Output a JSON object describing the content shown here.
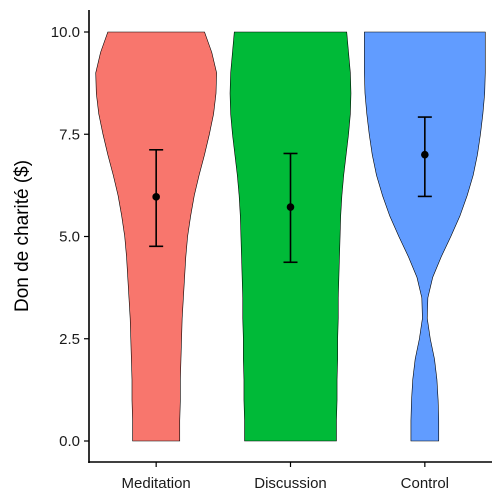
{
  "chart_data": {
    "type": "violin",
    "title": "",
    "xlabel": "",
    "ylabel": "Don de charité ($)",
    "ylim": [
      0,
      10
    ],
    "yticks": [
      0,
      2.5,
      5,
      7.5,
      10
    ],
    "ytick_labels": [
      "0.0",
      "2.5",
      "5.0",
      "7.5",
      "10.0"
    ],
    "grid": false,
    "legend": "none",
    "categories": [
      "Meditation",
      "Discussion",
      "Control"
    ],
    "series": [
      {
        "category": "Meditation",
        "color": "#F8766D",
        "mean": 5.97,
        "ci_low": 4.76,
        "ci_high": 7.12,
        "density_profile": [
          [
            0,
            0.39
          ],
          [
            0.5,
            0.39
          ],
          [
            1.0,
            0.4
          ],
          [
            1.5,
            0.4
          ],
          [
            2.0,
            0.41
          ],
          [
            2.5,
            0.42
          ],
          [
            3.0,
            0.43
          ],
          [
            3.5,
            0.45
          ],
          [
            4.0,
            0.47
          ],
          [
            4.5,
            0.49
          ],
          [
            5.0,
            0.52
          ],
          [
            5.5,
            0.57
          ],
          [
            6.0,
            0.63
          ],
          [
            6.5,
            0.71
          ],
          [
            7.0,
            0.8
          ],
          [
            7.5,
            0.88
          ],
          [
            8.0,
            0.95
          ],
          [
            8.5,
            0.99
          ],
          [
            9.0,
            1.0
          ],
          [
            9.5,
            0.92
          ],
          [
            10.0,
            0.8
          ]
        ]
      },
      {
        "category": "Discussion",
        "color": "#00BA38",
        "mean": 5.72,
        "ci_low": 4.37,
        "ci_high": 7.03,
        "density_profile": [
          [
            0,
            0.76
          ],
          [
            0.5,
            0.76
          ],
          [
            1.0,
            0.77
          ],
          [
            1.5,
            0.77
          ],
          [
            2.0,
            0.78
          ],
          [
            2.5,
            0.78
          ],
          [
            3.0,
            0.79
          ],
          [
            3.5,
            0.79
          ],
          [
            4.0,
            0.8
          ],
          [
            4.5,
            0.81
          ],
          [
            5.0,
            0.82
          ],
          [
            5.5,
            0.83
          ],
          [
            6.0,
            0.85
          ],
          [
            6.5,
            0.88
          ],
          [
            7.0,
            0.92
          ],
          [
            7.5,
            0.96
          ],
          [
            8.0,
            0.99
          ],
          [
            8.5,
            1.0
          ],
          [
            9.0,
            0.99
          ],
          [
            9.5,
            0.96
          ],
          [
            10.0,
            0.93
          ]
        ]
      },
      {
        "category": "Control",
        "color": "#619CFF",
        "mean": 7.0,
        "ci_low": 5.98,
        "ci_high": 7.92,
        "density_profile": [
          [
            0,
            0.23
          ],
          [
            0.5,
            0.23
          ],
          [
            1.0,
            0.22
          ],
          [
            1.5,
            0.2
          ],
          [
            2.0,
            0.16
          ],
          [
            2.5,
            0.09
          ],
          [
            3.0,
            0.04
          ],
          [
            3.5,
            0.05
          ],
          [
            4.0,
            0.13
          ],
          [
            4.5,
            0.27
          ],
          [
            5.0,
            0.43
          ],
          [
            5.5,
            0.58
          ],
          [
            6.0,
            0.7
          ],
          [
            6.5,
            0.8
          ],
          [
            7.0,
            0.87
          ],
          [
            7.5,
            0.92
          ],
          [
            8.0,
            0.96
          ],
          [
            8.5,
            0.99
          ],
          [
            9.0,
            1.0
          ],
          [
            9.5,
            1.0
          ],
          [
            10.0,
            1.0
          ]
        ]
      }
    ]
  }
}
